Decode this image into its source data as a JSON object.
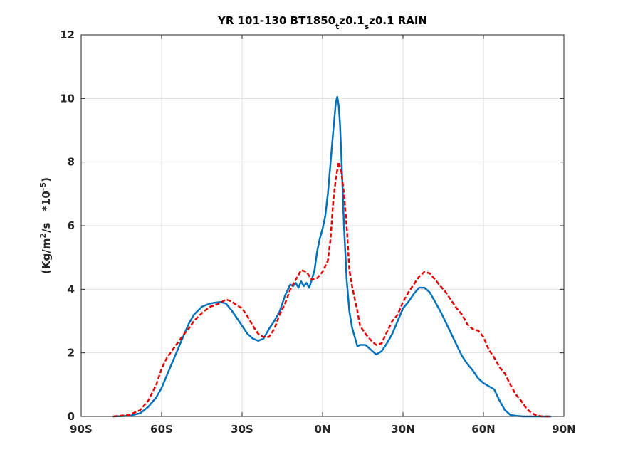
{
  "chart_data": {
    "type": "line",
    "title": {
      "prefix": "YR 101-130 BT1850",
      "sub1": "t",
      "mid": "z0.1",
      "sub2": "s",
      "suffix": "z0.1 RAIN"
    },
    "ylabel": {
      "prefix": "(Kg/m",
      "sup1": "2",
      "mid": "/s   *10",
      "sup2": "-5",
      "suffix": ")"
    },
    "xlabel": "",
    "xlim": [
      -90,
      90
    ],
    "ylim": [
      0,
      12
    ],
    "x_ticks": [
      -90,
      -60,
      -30,
      0,
      30,
      60,
      90
    ],
    "x_tick_labels": [
      "90S",
      "60S",
      "30S",
      "0N",
      "30N",
      "60N",
      "90N"
    ],
    "y_ticks": [
      0,
      2,
      4,
      6,
      8,
      10,
      12
    ],
    "y_tick_labels": [
      "0",
      "2",
      "4",
      "6",
      "8",
      "10",
      "12"
    ],
    "grid": true,
    "series": [
      {
        "color": "#0072BD",
        "style": "solid",
        "x": [
          -78,
          -72,
          -68,
          -65,
          -62,
          -60,
          -58,
          -55,
          -52,
          -50,
          -48,
          -45,
          -42,
          -40,
          -38,
          -36,
          -34,
          -32,
          -30,
          -28,
          -26,
          -24,
          -22,
          -20,
          -18,
          -16,
          -14,
          -12,
          -11,
          -10,
          -9,
          -8,
          -7,
          -6,
          -5,
          -4,
          -3,
          -2,
          -1,
          0,
          1,
          2,
          3,
          4,
          5,
          5.5,
          6,
          6.5,
          7,
          8,
          9,
          10,
          11,
          12,
          13,
          14,
          16,
          18,
          20,
          22,
          24,
          26,
          28,
          30,
          32,
          34,
          36,
          38,
          40,
          42,
          44,
          46,
          48,
          50,
          52,
          54,
          56,
          58,
          60,
          62,
          64,
          66,
          68,
          70,
          72,
          75,
          78,
          82,
          85
        ],
        "y": [
          0,
          0.02,
          0.1,
          0.3,
          0.6,
          0.9,
          1.3,
          1.9,
          2.5,
          2.9,
          3.2,
          3.45,
          3.55,
          3.58,
          3.6,
          3.55,
          3.35,
          3.1,
          2.85,
          2.6,
          2.45,
          2.38,
          2.45,
          2.75,
          3.0,
          3.3,
          3.8,
          4.15,
          4.1,
          4.2,
          4.05,
          4.25,
          4.1,
          4.2,
          4.05,
          4.3,
          4.6,
          5.2,
          5.6,
          5.9,
          6.3,
          7.0,
          8.0,
          9.0,
          9.9,
          10.05,
          9.8,
          9.2,
          8.2,
          6.0,
          4.3,
          3.3,
          2.8,
          2.5,
          2.2,
          2.25,
          2.25,
          2.1,
          1.95,
          2.05,
          2.3,
          2.6,
          3.0,
          3.4,
          3.6,
          3.85,
          4.05,
          4.05,
          3.9,
          3.6,
          3.3,
          2.95,
          2.6,
          2.25,
          1.9,
          1.65,
          1.45,
          1.2,
          1.05,
          0.95,
          0.85,
          0.5,
          0.2,
          0.05,
          0.02,
          0,
          0,
          0,
          0
        ]
      },
      {
        "color": "#E60000",
        "style": "dashed",
        "x": [
          -78,
          -72,
          -68,
          -65,
          -62,
          -60,
          -58,
          -55,
          -52,
          -50,
          -48,
          -45,
          -42,
          -40,
          -38,
          -36,
          -34,
          -32,
          -30,
          -28,
          -26,
          -24,
          -22,
          -20,
          -18,
          -16,
          -14,
          -12,
          -10,
          -8,
          -6,
          -4,
          -2,
          0,
          2,
          3,
          4,
          5,
          6,
          7,
          8,
          9,
          10,
          11,
          12,
          13,
          14,
          16,
          18,
          20,
          22,
          24,
          26,
          28,
          30,
          32,
          34,
          36,
          38,
          40,
          42,
          44,
          46,
          48,
          50,
          52,
          54,
          56,
          58,
          60,
          62,
          64,
          66,
          68,
          70,
          72,
          74,
          76,
          78,
          80,
          82,
          85
        ],
        "y": [
          0,
          0.05,
          0.2,
          0.5,
          1.0,
          1.5,
          1.85,
          2.2,
          2.55,
          2.75,
          3.0,
          3.25,
          3.45,
          3.5,
          3.58,
          3.68,
          3.62,
          3.5,
          3.4,
          3.15,
          2.85,
          2.6,
          2.5,
          2.5,
          2.75,
          3.2,
          3.55,
          4.0,
          4.3,
          4.6,
          4.55,
          4.3,
          4.35,
          4.55,
          4.9,
          5.6,
          6.8,
          7.5,
          8.0,
          7.7,
          7.0,
          6.0,
          4.6,
          4.1,
          3.7,
          3.3,
          2.85,
          2.6,
          2.4,
          2.25,
          2.3,
          2.65,
          3.0,
          3.2,
          3.6,
          3.9,
          4.15,
          4.4,
          4.55,
          4.5,
          4.3,
          4.1,
          3.9,
          3.65,
          3.4,
          3.2,
          2.9,
          2.75,
          2.7,
          2.5,
          2.1,
          1.85,
          1.55,
          1.35,
          1.0,
          0.7,
          0.5,
          0.25,
          0.1,
          0.03,
          0,
          0
        ]
      }
    ]
  }
}
